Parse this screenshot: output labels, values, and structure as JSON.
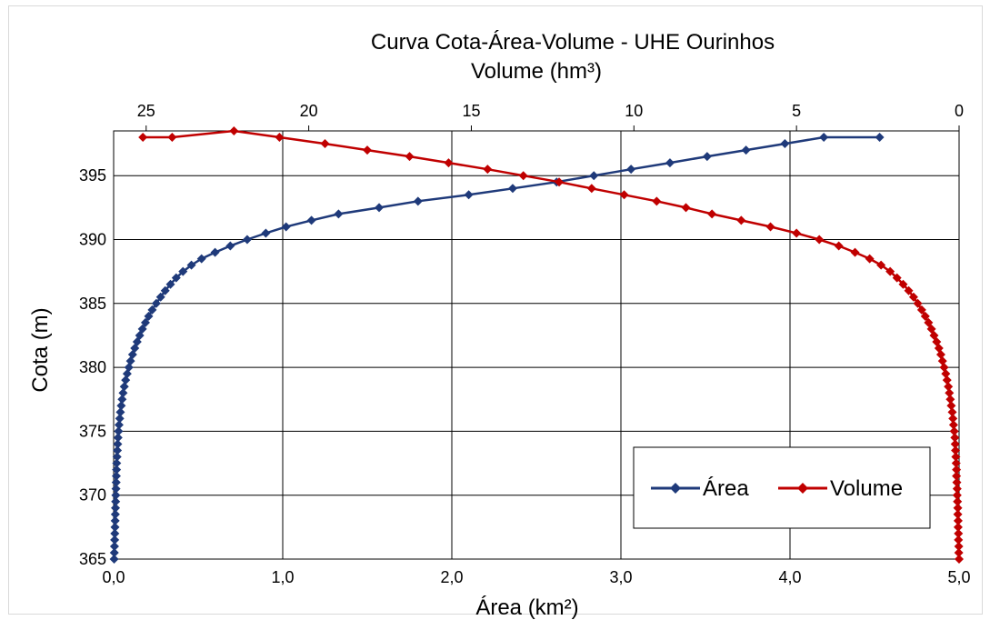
{
  "chart_data": {
    "type": "line",
    "title": "Curva Cota-Área-Volume - UHE Ourinhos",
    "secondary_x_label": "Volume  (hm³)",
    "xlabel": "Área (km²)",
    "ylabel": "Cota (m)",
    "x_bottom_range": [
      0,
      5
    ],
    "x_top_range": [
      26,
      0
    ],
    "x_top_reversed": true,
    "ylim": [
      365,
      398.5
    ],
    "x_bottom_ticks": [
      "0,0",
      "1,0",
      "2,0",
      "3,0",
      "4,0",
      "5,0"
    ],
    "x_bottom_tick_values": [
      0,
      1,
      2,
      3,
      4,
      5
    ],
    "x_top_ticks": [
      "25",
      "20",
      "15",
      "10",
      "5",
      "0"
    ],
    "x_top_tick_values": [
      25,
      20,
      15,
      10,
      5,
      0
    ],
    "y_ticks": [
      "365",
      "370",
      "375",
      "380",
      "385",
      "390",
      "395"
    ],
    "y_tick_values": [
      365,
      370,
      375,
      380,
      385,
      390,
      395
    ],
    "grid": true,
    "legend_position": "bottom-right",
    "colors": {
      "area": "#1f3a7a",
      "volume": "#c00000"
    },
    "series": [
      {
        "name": "Área",
        "axis": "bottom",
        "marker": "diamond",
        "points": [
          [
            0.003,
            365.0
          ],
          [
            0.004,
            365.5
          ],
          [
            0.005,
            366.0
          ],
          [
            0.006,
            366.5
          ],
          [
            0.007,
            367.0
          ],
          [
            0.008,
            367.5
          ],
          [
            0.009,
            368.0
          ],
          [
            0.01,
            368.5
          ],
          [
            0.011,
            369.0
          ],
          [
            0.012,
            369.5
          ],
          [
            0.013,
            370.0
          ],
          [
            0.014,
            370.5
          ],
          [
            0.015,
            371.0
          ],
          [
            0.016,
            371.5
          ],
          [
            0.017,
            372.0
          ],
          [
            0.018,
            372.5
          ],
          [
            0.02,
            373.0
          ],
          [
            0.022,
            373.5
          ],
          [
            0.024,
            374.0
          ],
          [
            0.026,
            374.5
          ],
          [
            0.029,
            375.0
          ],
          [
            0.032,
            375.5
          ],
          [
            0.036,
            376.0
          ],
          [
            0.04,
            376.5
          ],
          [
            0.045,
            377.0
          ],
          [
            0.05,
            377.5
          ],
          [
            0.056,
            378.0
          ],
          [
            0.063,
            378.5
          ],
          [
            0.071,
            379.0
          ],
          [
            0.08,
            379.5
          ],
          [
            0.09,
            380.0
          ],
          [
            0.1,
            380.5
          ],
          [
            0.112,
            381.0
          ],
          [
            0.125,
            381.5
          ],
          [
            0.139,
            382.0
          ],
          [
            0.154,
            382.5
          ],
          [
            0.17,
            383.0
          ],
          [
            0.188,
            383.5
          ],
          [
            0.207,
            384.0
          ],
          [
            0.228,
            384.5
          ],
          [
            0.252,
            385.0
          ],
          [
            0.278,
            385.5
          ],
          [
            0.305,
            386.0
          ],
          [
            0.336,
            386.5
          ],
          [
            0.37,
            387.0
          ],
          [
            0.41,
            387.5
          ],
          [
            0.46,
            388.0
          ],
          [
            0.52,
            388.5
          ],
          [
            0.6,
            389.0
          ],
          [
            0.69,
            389.5
          ],
          [
            0.79,
            390.0
          ],
          [
            0.9,
            390.5
          ],
          [
            1.02,
            391.0
          ],
          [
            1.17,
            391.5
          ],
          [
            1.33,
            392.0
          ],
          [
            1.57,
            392.5
          ],
          [
            1.8,
            393.0
          ],
          [
            2.1,
            393.5
          ],
          [
            2.36,
            394.0
          ],
          [
            2.62,
            394.5
          ],
          [
            2.84,
            395.0
          ],
          [
            3.06,
            395.5
          ],
          [
            3.29,
            396.0
          ],
          [
            3.51,
            396.5
          ],
          [
            3.74,
            397.0
          ],
          [
            3.97,
            397.5
          ],
          [
            4.2,
            398.0
          ],
          [
            4.53,
            398.0
          ]
        ]
      },
      {
        "name": "Volume",
        "axis": "top",
        "marker": "diamond",
        "points": [
          [
            0.0,
            365.0
          ],
          [
            0.01,
            365.5
          ],
          [
            0.01,
            366.0
          ],
          [
            0.02,
            366.5
          ],
          [
            0.02,
            367.0
          ],
          [
            0.03,
            367.5
          ],
          [
            0.03,
            368.0
          ],
          [
            0.04,
            368.5
          ],
          [
            0.04,
            369.0
          ],
          [
            0.05,
            369.5
          ],
          [
            0.06,
            370.0
          ],
          [
            0.06,
            370.5
          ],
          [
            0.07,
            371.0
          ],
          [
            0.08,
            371.5
          ],
          [
            0.08,
            372.0
          ],
          [
            0.09,
            372.5
          ],
          [
            0.1,
            373.0
          ],
          [
            0.11,
            373.5
          ],
          [
            0.12,
            374.0
          ],
          [
            0.13,
            374.5
          ],
          [
            0.15,
            375.0
          ],
          [
            0.17,
            375.5
          ],
          [
            0.19,
            376.0
          ],
          [
            0.21,
            376.5
          ],
          [
            0.24,
            377.0
          ],
          [
            0.27,
            377.5
          ],
          [
            0.3,
            378.0
          ],
          [
            0.33,
            378.5
          ],
          [
            0.37,
            379.0
          ],
          [
            0.41,
            379.5
          ],
          [
            0.46,
            380.0
          ],
          [
            0.51,
            380.5
          ],
          [
            0.56,
            381.0
          ],
          [
            0.62,
            381.5
          ],
          [
            0.69,
            382.0
          ],
          [
            0.77,
            382.5
          ],
          [
            0.85,
            383.0
          ],
          [
            0.94,
            383.5
          ],
          [
            1.04,
            384.0
          ],
          [
            1.15,
            384.5
          ],
          [
            1.27,
            385.0
          ],
          [
            1.4,
            385.5
          ],
          [
            1.55,
            386.0
          ],
          [
            1.72,
            386.5
          ],
          [
            1.91,
            387.0
          ],
          [
            2.12,
            387.5
          ],
          [
            2.4,
            388.0
          ],
          [
            2.75,
            388.5
          ],
          [
            3.2,
            389.0
          ],
          [
            3.7,
            389.5
          ],
          [
            4.3,
            390.0
          ],
          [
            5.0,
            390.5
          ],
          [
            5.8,
            391.0
          ],
          [
            6.7,
            391.5
          ],
          [
            7.6,
            392.0
          ],
          [
            8.4,
            392.5
          ],
          [
            9.3,
            393.0
          ],
          [
            10.3,
            393.5
          ],
          [
            11.3,
            394.0
          ],
          [
            12.3,
            394.5
          ],
          [
            13.4,
            395.0
          ],
          [
            14.5,
            395.5
          ],
          [
            15.7,
            396.0
          ],
          [
            16.9,
            396.5
          ],
          [
            18.2,
            397.0
          ],
          [
            19.5,
            397.5
          ],
          [
            20.9,
            398.0
          ],
          [
            22.3,
            398.5
          ],
          [
            24.2,
            398.0
          ],
          [
            25.1,
            398.0
          ]
        ]
      }
    ]
  }
}
